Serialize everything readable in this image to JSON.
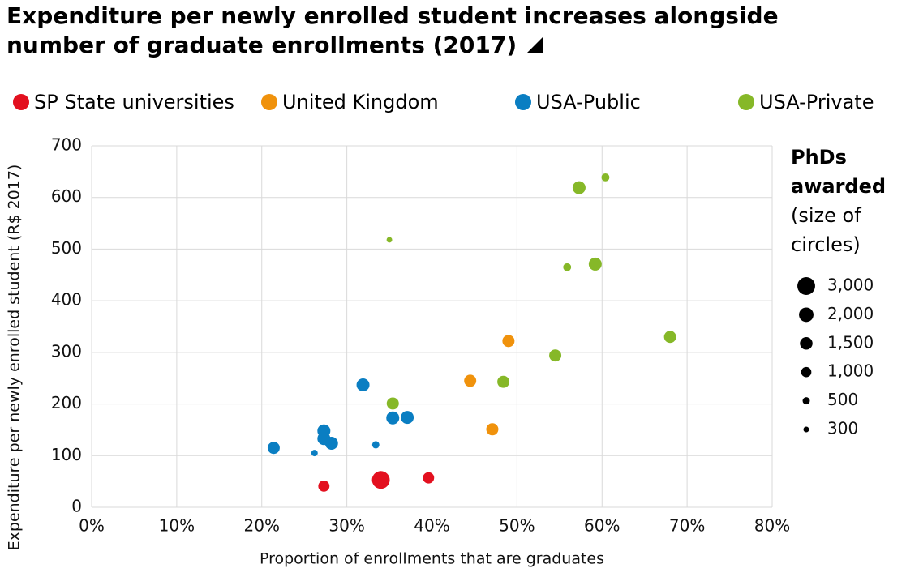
{
  "chart_data": {
    "type": "bubble",
    "title": "Expenditure per newly enrolled student increases alongside number of graduate enrollments (2017)",
    "x_label": "Proportion of enrollments that are graduates",
    "y_label": "Expenditure per newly enrolled student (R$ 2017)",
    "xlim": [
      0,
      80
    ],
    "xticks": [
      {
        "value": 0,
        "label": "0%"
      },
      {
        "value": 10,
        "label": "10%"
      },
      {
        "value": 20,
        "label": "20%"
      },
      {
        "value": 30,
        "label": "30%"
      },
      {
        "value": 40,
        "label": "40%"
      },
      {
        "value": 50,
        "label": "50%"
      },
      {
        "value": 60,
        "label": "60%"
      },
      {
        "value": 70,
        "label": "70%"
      },
      {
        "value": 80,
        "label": "80%"
      }
    ],
    "ylim": [
      0,
      700
    ],
    "yticks": [
      0,
      100,
      200,
      300,
      400,
      500,
      600,
      700
    ],
    "grid": true,
    "series": [
      {
        "name": "SP State universities",
        "color": "#e3101f",
        "x": [
          27.3,
          34.0,
          39.6
        ],
        "values": [
          41,
          53,
          57
        ],
        "sizes": [
          1200,
          3000,
          1200
        ]
      },
      {
        "name": "United Kingdom",
        "color": "#f0920c",
        "x": [
          44.5,
          49.0,
          47.1
        ],
        "values": [
          245,
          322,
          151
        ],
        "sizes": [
          1400,
          1400,
          1400
        ]
      },
      {
        "name": "USA-Public",
        "color": "#0a7ec2",
        "x": [
          21.4,
          26.2,
          27.3,
          27.3,
          28.2,
          31.9,
          33.4,
          35.4,
          37.1
        ],
        "values": [
          115,
          105,
          148,
          133,
          124,
          237,
          121,
          173,
          174
        ],
        "sizes": [
          1400,
          400,
          1600,
          1600,
          1600,
          1600,
          500,
          1600,
          1600
        ]
      },
      {
        "name": "USA-Private",
        "color": "#86b828",
        "x": [
          35.0,
          35.4,
          48.4,
          54.5,
          55.9,
          57.3,
          59.2,
          60.4,
          68.0
        ],
        "values": [
          518,
          201,
          243,
          294,
          465,
          619,
          471,
          639,
          330
        ],
        "sizes": [
          300,
          1400,
          1400,
          1400,
          600,
          1600,
          1600,
          600,
          1400
        ]
      }
    ],
    "size_legend": {
      "title": "PhDs awarded",
      "subtitle": "(size of circles)",
      "sizes": [
        {
          "value": 3000,
          "label": "3,000"
        },
        {
          "value": 2000,
          "label": "2,000"
        },
        {
          "value": 1500,
          "label": "1,500"
        },
        {
          "value": 1000,
          "label": "1,000"
        },
        500,
        300
      ]
    }
  }
}
